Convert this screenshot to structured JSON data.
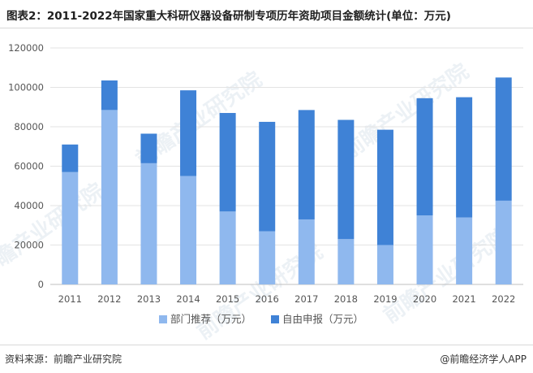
{
  "header": {
    "title": "图表2：2011-2022年国家重大科研仪器设备研制专项历年资助项目金额统计(单位：万元)"
  },
  "chart_data": {
    "type": "bar",
    "stacked": true,
    "title": "图表2：2011-2022年国家重大科研仪器设备研制专项历年资助项目金额统计(单位：万元)",
    "categories": [
      "2011",
      "2012",
      "2013",
      "2014",
      "2015",
      "2016",
      "2017",
      "2018",
      "2019",
      "2020",
      "2021",
      "2022"
    ],
    "series": [
      {
        "name": "部门推荐（万元）",
        "color": "#8fb8ee",
        "values": [
          57000,
          88500,
          61500,
          55000,
          37000,
          27000,
          33000,
          23000,
          20000,
          35000,
          34000,
          42500
        ]
      },
      {
        "name": "自由申报（万元）",
        "color": "#3f82d6",
        "values": [
          14000,
          15000,
          15000,
          43500,
          50000,
          55500,
          55500,
          60500,
          58500,
          59500,
          61000,
          62500
        ]
      }
    ],
    "yticks": [
      "0",
      "20000",
      "40000",
      "60000",
      "80000",
      "100000",
      "120000"
    ],
    "ylim": [
      0,
      120000
    ],
    "grid": true,
    "legend": "bottom"
  },
  "watermark": {
    "text": "前瞻产业研究院"
  },
  "footer": {
    "source": "资料来源：前瞻产业研究院",
    "brand": "@前瞻经济学人APP"
  }
}
